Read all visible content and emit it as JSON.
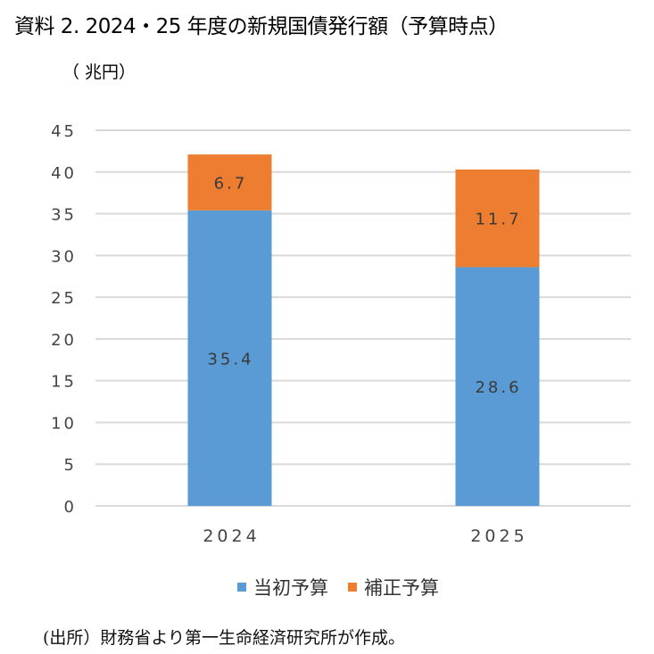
{
  "title": "資料 2.  2024・25 年度の新規国債発行額（予算時点）",
  "unit_label": "（ 兆円）",
  "source_note": "(出所）財務省より第一生命経済研究所が作成。",
  "colors": {
    "initial": "#5B9BD5",
    "supplementary": "#ED7D31",
    "grid": "#d9d9d9",
    "axis_text": "#444444"
  },
  "chart_data": {
    "type": "bar",
    "stacked": true,
    "title": "資料 2.  2024・25 年度の新規国債発行額（予算時点）",
    "ylabel": "（ 兆円）",
    "xlabel": "",
    "categories": [
      "2024",
      "2025"
    ],
    "series": [
      {
        "name": "当初予算",
        "values": [
          35.4,
          28.6
        ],
        "labels": [
          "35.4",
          "28.6"
        ],
        "color": "#5B9BD5"
      },
      {
        "name": "補正予算",
        "values": [
          6.7,
          11.7
        ],
        "labels": [
          "6.7",
          "11.7"
        ],
        "color": "#ED7D31"
      }
    ],
    "ylim": [
      0,
      45
    ],
    "yticks": [
      0,
      5,
      10,
      15,
      20,
      25,
      30,
      35,
      40,
      45
    ],
    "ytick_labels": [
      "0",
      "5",
      "10",
      "15",
      "20",
      "25",
      "30",
      "35",
      "40",
      "45"
    ],
    "grid": true,
    "legend_position": "bottom"
  }
}
